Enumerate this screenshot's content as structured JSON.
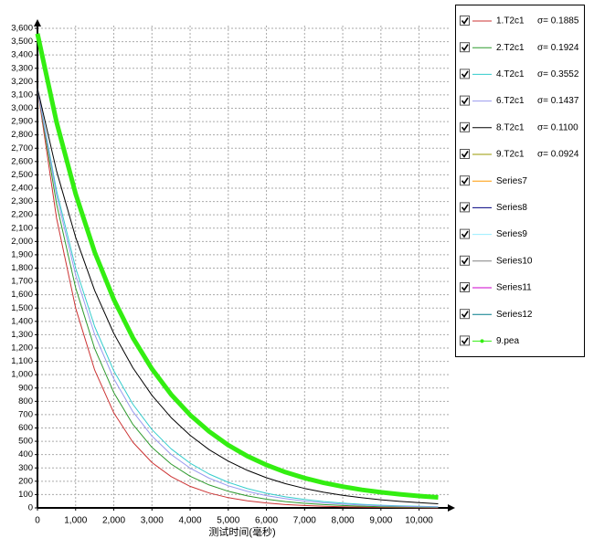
{
  "chart_data": {
    "type": "line",
    "xlabel": "测试时间(毫秒)",
    "x": [
      0,
      500,
      1000,
      1500,
      2000,
      2500,
      3000,
      3500,
      4000,
      4500,
      5000,
      5500,
      6000,
      6500,
      7000,
      7500,
      8000,
      8500,
      9000,
      9500,
      10000,
      10500
    ],
    "xlim": [
      0,
      10800
    ],
    "xticks": [
      0,
      {
        "value": 1000,
        "label": "1,000"
      },
      {
        "value": 2000,
        "label": "2,000"
      },
      {
        "value": 3000,
        "label": "3,000"
      },
      {
        "value": 4000,
        "label": "4,000"
      },
      {
        "value": 5000,
        "label": "5,000"
      },
      {
        "value": 6000,
        "label": "6,000"
      },
      {
        "value": 7000,
        "label": "7,000"
      },
      {
        "value": 8000,
        "label": "8,000"
      },
      {
        "value": 9000,
        "label": "9,000"
      },
      {
        "value": 10000,
        "label": "10,000"
      }
    ],
    "ylim": [
      0,
      3600
    ],
    "yticks": [
      0,
      100,
      200,
      300,
      400,
      500,
      600,
      700,
      800,
      900,
      {
        "value": 1000,
        "label": "1,000"
      },
      {
        "value": 1100,
        "label": "1,100"
      },
      {
        "value": 1200,
        "label": "1,200"
      },
      {
        "value": 1300,
        "label": "1,300"
      },
      {
        "value": 1400,
        "label": "1,400"
      },
      {
        "value": 1500,
        "label": "1,500"
      },
      {
        "value": 1600,
        "label": "1,600"
      },
      {
        "value": 1700,
        "label": "1,700"
      },
      {
        "value": 1800,
        "label": "1,800"
      },
      {
        "value": 1900,
        "label": "1,900"
      },
      {
        "value": 2000,
        "label": "2,000"
      },
      {
        "value": 2100,
        "label": "2,100"
      },
      {
        "value": 2200,
        "label": "2,200"
      },
      {
        "value": 2300,
        "label": "2,300"
      },
      {
        "value": 2400,
        "label": "2,400"
      },
      {
        "value": 2500,
        "label": "2,500"
      },
      {
        "value": 2600,
        "label": "2,600"
      },
      {
        "value": 2700,
        "label": "2,700"
      },
      {
        "value": 2800,
        "label": "2,800"
      },
      {
        "value": 2900,
        "label": "2,900"
      },
      {
        "value": 3000,
        "label": "3,000"
      },
      {
        "value": 3100,
        "label": "3,100"
      },
      {
        "value": 3200,
        "label": "3,200"
      },
      {
        "value": 3300,
        "label": "3,300"
      },
      {
        "value": 3400,
        "label": "3,400"
      },
      {
        "value": 3500,
        "label": "3,500"
      },
      {
        "value": 3600,
        "label": "3,600"
      }
    ],
    "grid": true,
    "legend": "right",
    "series": [
      {
        "name": "1.T2c1",
        "sigma": "σ= 0.1885",
        "color": "#cc3333",
        "values": [
          3150,
          2174,
          1500,
          1035,
          714,
          493,
          340,
          235,
          162,
          112,
          77,
          53,
          37,
          25,
          18,
          12,
          8,
          6,
          4,
          3,
          2,
          1
        ]
      },
      {
        "name": "2.T2c1",
        "sigma": "σ= 0.1924",
        "color": "#2e9a2e",
        "values": [
          3150,
          2281,
          1651,
          1196,
          866,
          627,
          454,
          329,
          238,
          172,
          125,
          90,
          65,
          47,
          34,
          25,
          18,
          13,
          9,
          7,
          5,
          4
        ]
      },
      {
        "name": "4.T2c1",
        "sigma": "σ= 0.3552",
        "color": "#33cccc",
        "values": [
          3150,
          2381,
          1800,
          1361,
          1029,
          778,
          588,
          444,
          336,
          254,
          192,
          145,
          110,
          83,
          63,
          47,
          36,
          27,
          20,
          15,
          12,
          9
        ]
      },
      {
        "name": "6.T2c1",
        "sigma": "σ= 0.1437",
        "color": "#9999ee",
        "values": [
          3150,
          2347,
          1748,
          1302,
          970,
          723,
          539,
          401,
          299,
          223,
          166,
          124,
          92,
          69,
          51,
          38,
          28,
          21,
          16,
          12,
          9,
          7
        ]
      },
      {
        "name": "8.T2c1",
        "sigma": "σ= 0.1100",
        "color": "#000000",
        "values": [
          3150,
          2529,
          2031,
          1631,
          1310,
          1052,
          845,
          678,
          545,
          437,
          351,
          282,
          226,
          182,
          146,
          117,
          94,
          76,
          61,
          49,
          39,
          31
        ]
      },
      {
        "name": "9.T2c1",
        "sigma": "σ= 0.0924",
        "color": "#999900",
        "values": [
          null,
          null,
          null,
          null,
          null,
          null,
          null,
          null,
          null,
          null,
          null,
          null,
          null,
          null,
          null,
          null,
          null,
          null,
          null,
          null,
          null,
          null
        ]
      },
      {
        "name": "Series7",
        "color": "#ff9900",
        "values": [
          null,
          null,
          null,
          null,
          null,
          null,
          null,
          null,
          null,
          null,
          null,
          null,
          null,
          null,
          null,
          null,
          null,
          null,
          null,
          null,
          null,
          null
        ]
      },
      {
        "name": "Series8",
        "color": "#000080",
        "values": [
          null,
          null,
          null,
          null,
          null,
          null,
          null,
          null,
          null,
          null,
          null,
          null,
          null,
          null,
          null,
          null,
          null,
          null,
          null,
          null,
          null,
          null
        ]
      },
      {
        "name": "Series9",
        "color": "#99eeff",
        "values": [
          null,
          null,
          null,
          null,
          null,
          null,
          null,
          null,
          null,
          null,
          null,
          null,
          null,
          null,
          null,
          null,
          null,
          null,
          null,
          null,
          null,
          null
        ]
      },
      {
        "name": "Series10",
        "color": "#808080",
        "values": [
          null,
          null,
          null,
          null,
          null,
          null,
          null,
          null,
          null,
          null,
          null,
          null,
          null,
          null,
          null,
          null,
          null,
          null,
          null,
          null,
          null,
          null
        ]
      },
      {
        "name": "Series11",
        "color": "#cc00cc",
        "values": [
          null,
          null,
          null,
          null,
          null,
          null,
          null,
          null,
          null,
          null,
          null,
          null,
          null,
          null,
          null,
          null,
          null,
          null,
          null,
          null,
          null,
          null
        ]
      },
      {
        "name": "Series12",
        "color": "#007b8a",
        "values": [
          null,
          null,
          null,
          null,
          null,
          null,
          null,
          null,
          null,
          null,
          null,
          null,
          null,
          null,
          null,
          null,
          null,
          null,
          null,
          null,
          null,
          null
        ]
      },
      {
        "name": "9.pea",
        "color": "#33ee11",
        "marker": true,
        "values": [
          3560,
          2896,
          2357,
          1920,
          1565,
          1277,
          1043,
          852,
          698,
          573,
          471,
          389,
          322,
          268,
          224,
          188,
          160,
          136,
          117,
          102,
          89,
          79
        ]
      }
    ]
  }
}
